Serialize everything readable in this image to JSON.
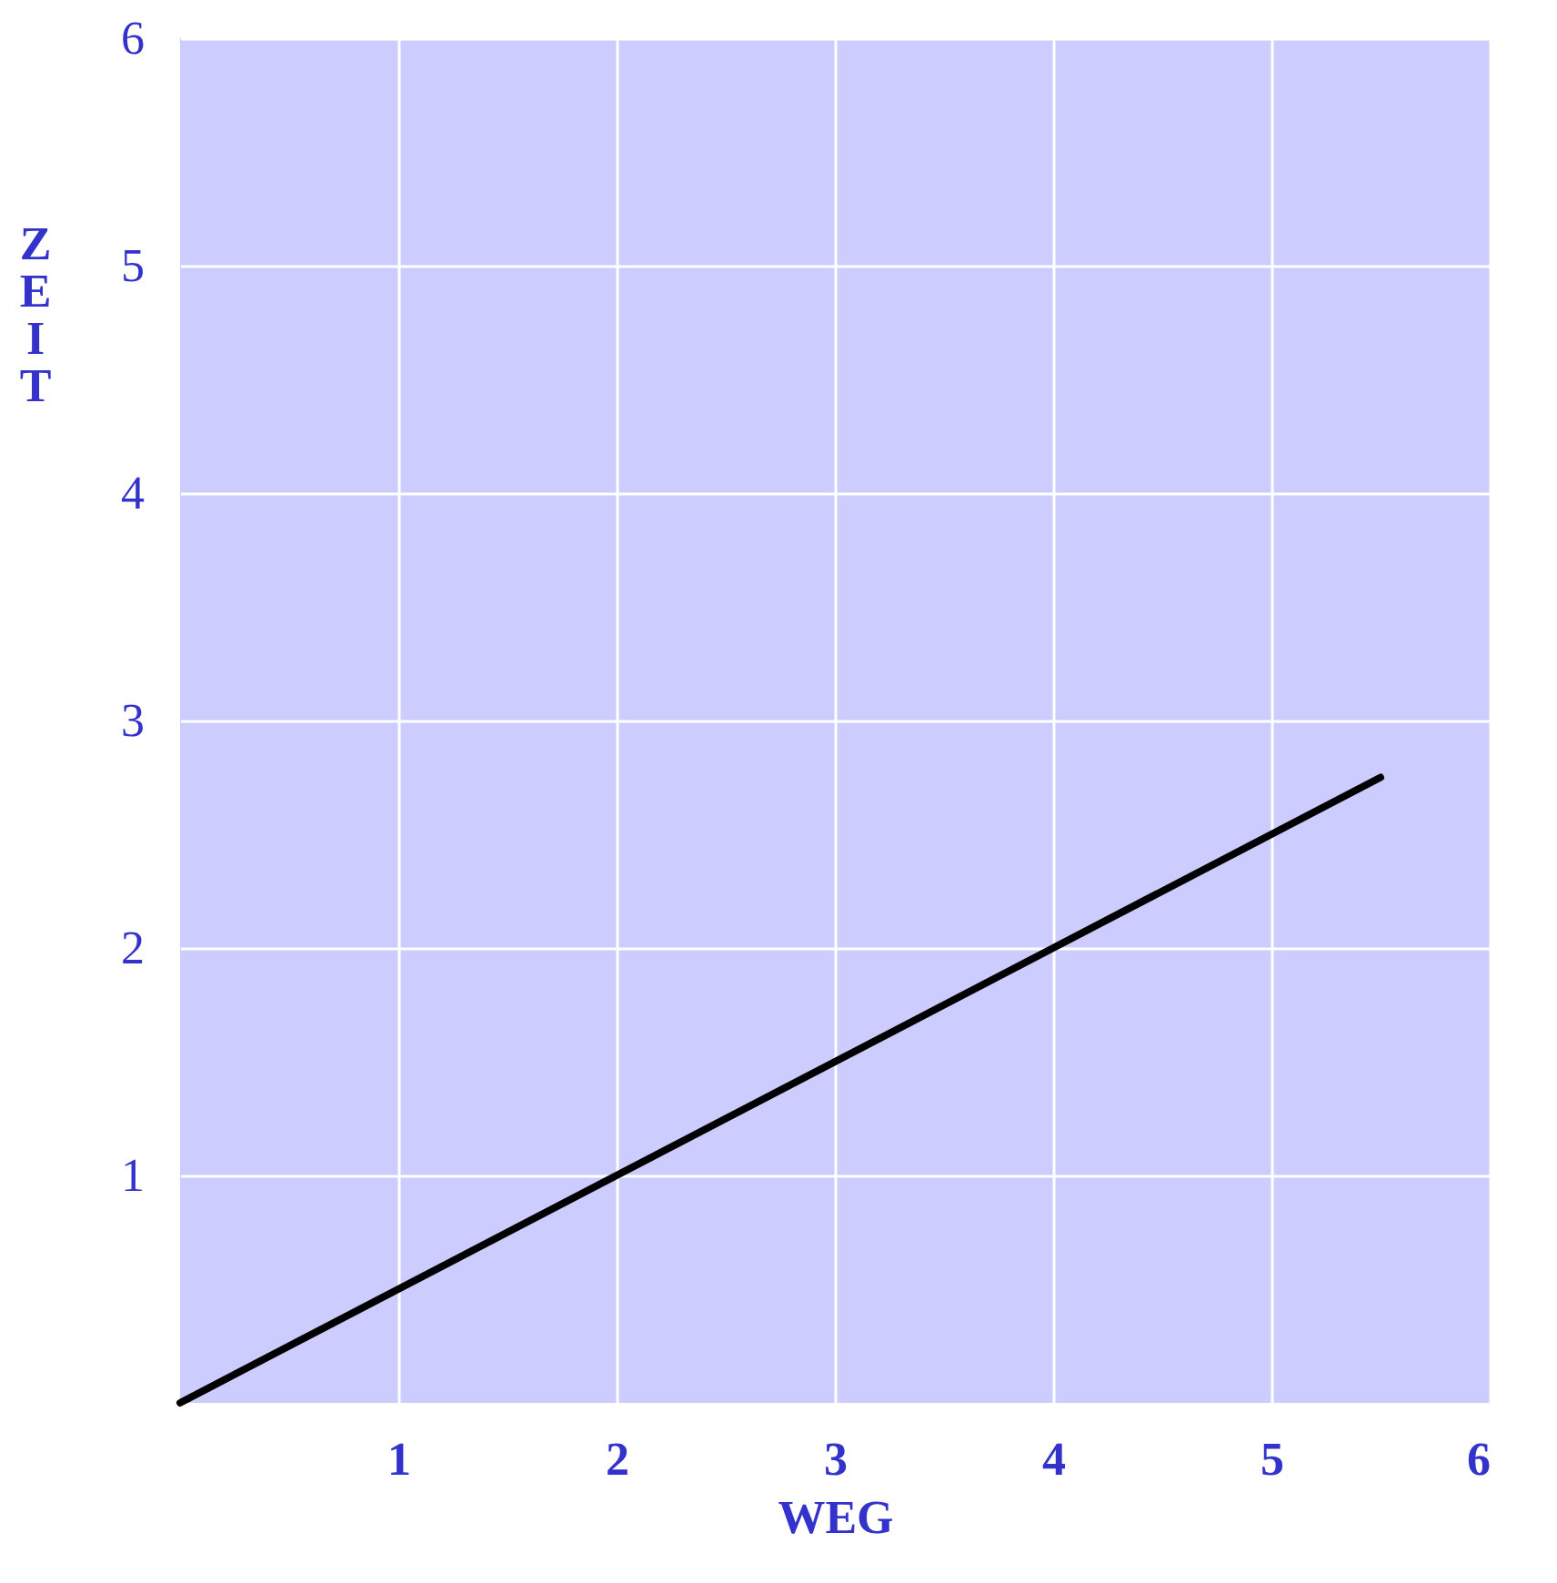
{
  "chart_data": {
    "type": "line",
    "xlabel": "WEG",
    "ylabel": "ZEIT",
    "x": [
      0,
      5.5
    ],
    "series": [
      {
        "color": "#000000",
        "values": [
          0,
          2.75
        ]
      }
    ],
    "xlim": [
      0,
      6
    ],
    "xticks": [
      1,
      2,
      3,
      4,
      5,
      6
    ],
    "ylim": [
      0,
      6
    ],
    "yticks": [
      1,
      2,
      3,
      4,
      5,
      6
    ],
    "grid": true,
    "marker": "none",
    "line_style": "solid"
  }
}
